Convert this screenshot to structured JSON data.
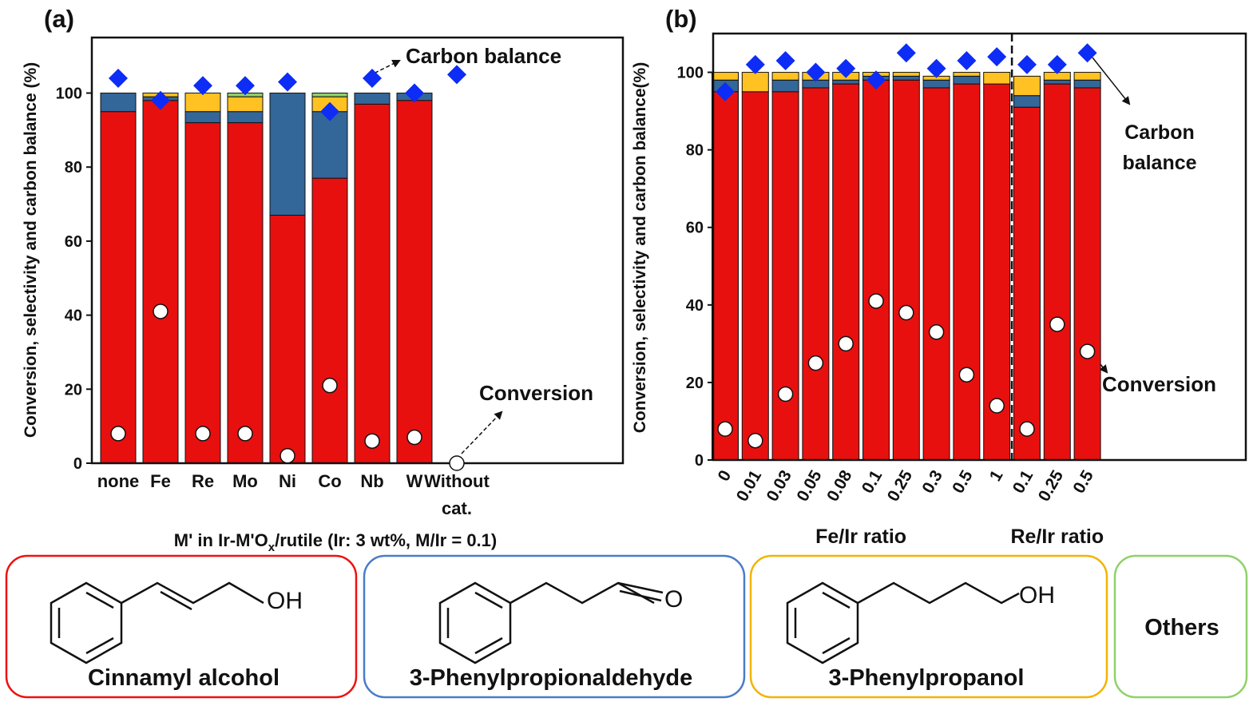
{
  "chart_data": [
    {
      "type": "bar",
      "stacked": true,
      "panel": "(a)",
      "ylabel": "Conversion, selectivity and carbon balance (%)",
      "xlabel": [
        "M' in Ir-M'O",
        "x",
        "/rutile (Ir: 3 wt%, M/Ir = 0.1)"
      ],
      "categories": [
        "none",
        "Fe",
        "Re",
        "Mo",
        "Ni",
        "Co",
        "Nb",
        "W",
        "Without cat."
      ],
      "series": [
        {
          "name": "Cinnamyl alcohol",
          "color": "#e8100f",
          "values": [
            95,
            98,
            92,
            92,
            67,
            77,
            97,
            98,
            null
          ]
        },
        {
          "name": "3-Phenylpropionaldehyde",
          "color": "#336699",
          "values": [
            5,
            1,
            3,
            3,
            33,
            18,
            3,
            2,
            null
          ]
        },
        {
          "name": "3-Phenylpropanol",
          "color": "#ffc222",
          "values": [
            0,
            1,
            5,
            4,
            0,
            4,
            0,
            0,
            null
          ]
        },
        {
          "name": "Others",
          "color": "#8fd16a",
          "values": [
            0,
            0,
            0,
            1,
            0,
            1,
            0,
            0,
            null
          ]
        }
      ],
      "points": [
        {
          "name": "Conversion",
          "marker": "circle",
          "color": "#ffffff",
          "values": [
            8,
            41,
            8,
            8,
            2,
            21,
            6,
            7,
            0
          ]
        },
        {
          "name": "Carbon balance",
          "marker": "diamond",
          "color": "#0d2cf5",
          "values": [
            104,
            98,
            102,
            102,
            103,
            95,
            104,
            100,
            105
          ]
        }
      ],
      "ylim": [
        0,
        115
      ],
      "yticks": [
        0,
        20,
        40,
        60,
        80,
        100
      ]
    },
    {
      "type": "bar",
      "stacked": true,
      "panel": "(b)",
      "ylabel": "Conversion, selectivity and carbon balance(%)",
      "groups": [
        {
          "name": "Fe/Ir ratio",
          "categories": [
            "0",
            "0.01",
            "0.03",
            "0.05",
            "0.08",
            "0.1",
            "0.25",
            "0.3",
            "0.5",
            "1"
          ]
        },
        {
          "name": "Re/Ir ratio",
          "categories": [
            "0.1",
            "0.25",
            "0.5"
          ]
        }
      ],
      "series": [
        {
          "name": "Cinnamyl alcohol",
          "color": "#e8100f",
          "values": [
            95,
            95,
            95,
            96,
            97,
            98,
            98,
            96,
            97,
            97,
            91,
            97,
            96
          ]
        },
        {
          "name": "3-Phenylpropionaldehyde",
          "color": "#336699",
          "values": [
            3,
            0,
            3,
            2,
            1,
            1,
            1,
            2,
            2,
            0,
            3,
            1,
            2
          ]
        },
        {
          "name": "3-Phenylpropanol",
          "color": "#ffc222",
          "values": [
            2,
            5,
            2,
            2,
            2,
            1,
            1,
            1,
            1,
            3,
            5,
            2,
            2
          ]
        }
      ],
      "points": [
        {
          "name": "Conversion",
          "marker": "circle",
          "color": "#ffffff",
          "values": [
            8,
            5,
            17,
            25,
            30,
            41,
            38,
            33,
            22,
            14,
            8,
            35,
            28
          ]
        },
        {
          "name": "Carbon balance",
          "marker": "diamond",
          "color": "#0d2cf5",
          "values": [
            95,
            102,
            103,
            100,
            101,
            98,
            105,
            101,
            103,
            104,
            102,
            102,
            105
          ]
        }
      ],
      "ylim": [
        0,
        110
      ],
      "yticks": [
        0,
        20,
        40,
        60,
        80,
        100
      ]
    }
  ],
  "molecule_atoms": [
    "OH",
    "O",
    "OH"
  ]
}
